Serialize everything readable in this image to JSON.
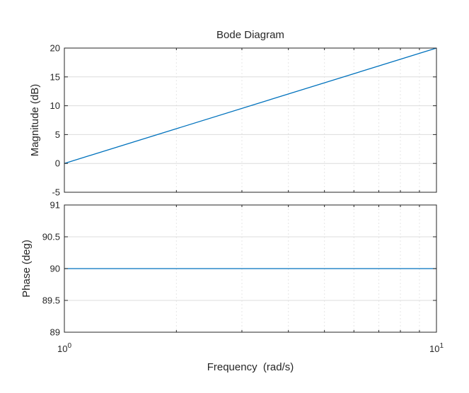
{
  "chart_data": {
    "type": "line",
    "title": "Bode Diagram",
    "xlabel": "Frequency  (rad/s)",
    "x_scale": "log",
    "xlim": [
      1,
      10
    ],
    "x_ticks": [
      {
        "base": "10",
        "exp": "0",
        "value": 1
      },
      {
        "base": "10",
        "exp": "1",
        "value": 10
      }
    ],
    "grid": true,
    "colors": {
      "line": "#0072BD",
      "axis": "#262626",
      "grid_major": "#dcdcdc",
      "grid_minor": "#e6e6e6",
      "frame": "#262626"
    },
    "panels": [
      {
        "name": "magnitude",
        "ylabel": "Magnitude (dB)",
        "ylim": [
          -5,
          20
        ],
        "yticks": [
          20,
          15,
          10,
          5,
          0,
          -5
        ],
        "ytick_labels": [
          "20",
          "15",
          "10",
          "5",
          "0",
          "-5"
        ],
        "series": [
          {
            "x": [
              1,
              10
            ],
            "y": [
              0,
              20
            ]
          }
        ]
      },
      {
        "name": "phase",
        "ylabel": "Phase (deg)",
        "ylim": [
          89,
          91
        ],
        "yticks": [
          91,
          90.5,
          90,
          89.5,
          89
        ],
        "ytick_labels": [
          "91",
          "90.5",
          "90",
          "89.5",
          "89"
        ],
        "series": [
          {
            "x": [
              1,
              10
            ],
            "y": [
              90,
              90
            ]
          }
        ]
      }
    ]
  }
}
